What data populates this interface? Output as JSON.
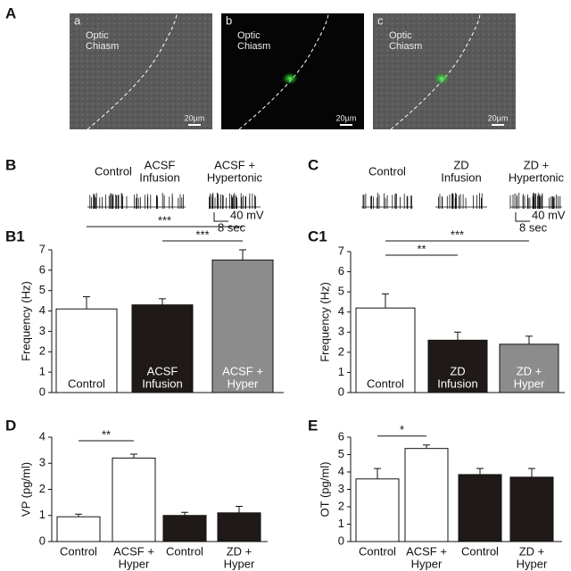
{
  "panel_a": {
    "label": "A",
    "images": [
      {
        "letter": "a",
        "region": [
          "Optic",
          "Chiasm"
        ],
        "scale": "20µm"
      },
      {
        "letter": "b",
        "region": [
          "Optic",
          "Chiasm"
        ],
        "scale": "20µm"
      },
      {
        "letter": "c",
        "region": [
          "Optic",
          "Chiasm"
        ],
        "scale": "20µm"
      }
    ]
  },
  "traces": [
    {
      "label": "B",
      "conditions": [
        [
          "Control"
        ],
        [
          "ACSF",
          "Infusion"
        ],
        [
          "ACSF  +",
          "Hypertonic"
        ]
      ],
      "scale_v": "40 mV",
      "scale_t": "8 sec"
    },
    {
      "label": "C",
      "conditions": [
        [
          "Control"
        ],
        [
          "ZD",
          "Infusion"
        ],
        [
          "ZD +",
          "Hypertonic"
        ]
      ],
      "scale_v": "40 mV",
      "scale_t": "8 sec"
    }
  ],
  "chart_data": [
    {
      "type": "bar",
      "title": "B1",
      "y_label": "Frequency (Hz)",
      "labels_inside": true,
      "categories": [
        [
          "Control"
        ],
        [
          "ACSF",
          "Infusion"
        ],
        [
          "ACSF  +",
          "Hyper"
        ]
      ],
      "values": [
        4.1,
        4.3,
        6.5
      ],
      "errors": [
        0.6,
        0.3,
        0.5
      ],
      "colors": [
        "#ffffff",
        "#1f1a17",
        "#8c8c8c"
      ],
      "ylim": [
        0,
        7
      ],
      "yticks": [
        0,
        1,
        2,
        3,
        4,
        5,
        6,
        7
      ],
      "annotations": [
        {
          "text": "***",
          "from": 0,
          "to": 2
        },
        {
          "text": "***",
          "from": 1,
          "to": 2
        }
      ]
    },
    {
      "type": "bar",
      "title": "C1",
      "y_label": "Frequency (Hz)",
      "labels_inside": true,
      "categories": [
        [
          "Control"
        ],
        [
          "ZD",
          "Infusion"
        ],
        [
          "ZD +",
          "Hyper"
        ]
      ],
      "values": [
        4.2,
        2.6,
        2.4
      ],
      "errors": [
        0.7,
        0.4,
        0.4
      ],
      "colors": [
        "#ffffff",
        "#1f1a17",
        "#8c8c8c"
      ],
      "ylim": [
        0,
        7
      ],
      "yticks": [
        0,
        1,
        2,
        3,
        4,
        5,
        6,
        7
      ],
      "annotations": [
        {
          "text": "***",
          "from": 0,
          "to": 2
        },
        {
          "text": "**",
          "from": 0,
          "to": 1
        }
      ]
    },
    {
      "type": "bar",
      "title": "D",
      "y_label": "VP (pg/ml)",
      "labels_inside": false,
      "categories": [
        [
          "Control"
        ],
        [
          "ACSF +",
          "Hyper"
        ],
        [
          "Control"
        ],
        [
          "ZD +",
          "Hyper"
        ]
      ],
      "values": [
        0.95,
        3.2,
        1.0,
        1.1
      ],
      "errors": [
        0.1,
        0.15,
        0.12,
        0.25
      ],
      "colors": [
        "#ffffff",
        "#ffffff",
        "#1f1a17",
        "#1f1a17"
      ],
      "ylim": [
        0,
        4
      ],
      "yticks": [
        0,
        1,
        2,
        3,
        4
      ],
      "annotations": [
        {
          "text": "**",
          "from": 0,
          "to": 1
        }
      ]
    },
    {
      "type": "bar",
      "title": "E",
      "y_label": "OT (pg/ml)",
      "labels_inside": false,
      "categories": [
        [
          "Control"
        ],
        [
          "ACSF +",
          "Hyper"
        ],
        [
          "Control"
        ],
        [
          "ZD +",
          "Hyper"
        ]
      ],
      "values": [
        3.6,
        5.35,
        3.85,
        3.7
      ],
      "errors": [
        0.6,
        0.2,
        0.35,
        0.5
      ],
      "colors": [
        "#ffffff",
        "#ffffff",
        "#1f1a17",
        "#1f1a17"
      ],
      "ylim": [
        0,
        6
      ],
      "yticks": [
        0,
        1,
        2,
        3,
        4,
        5,
        6
      ],
      "annotations": [
        {
          "text": "*",
          "from": 0,
          "to": 1
        }
      ]
    }
  ]
}
